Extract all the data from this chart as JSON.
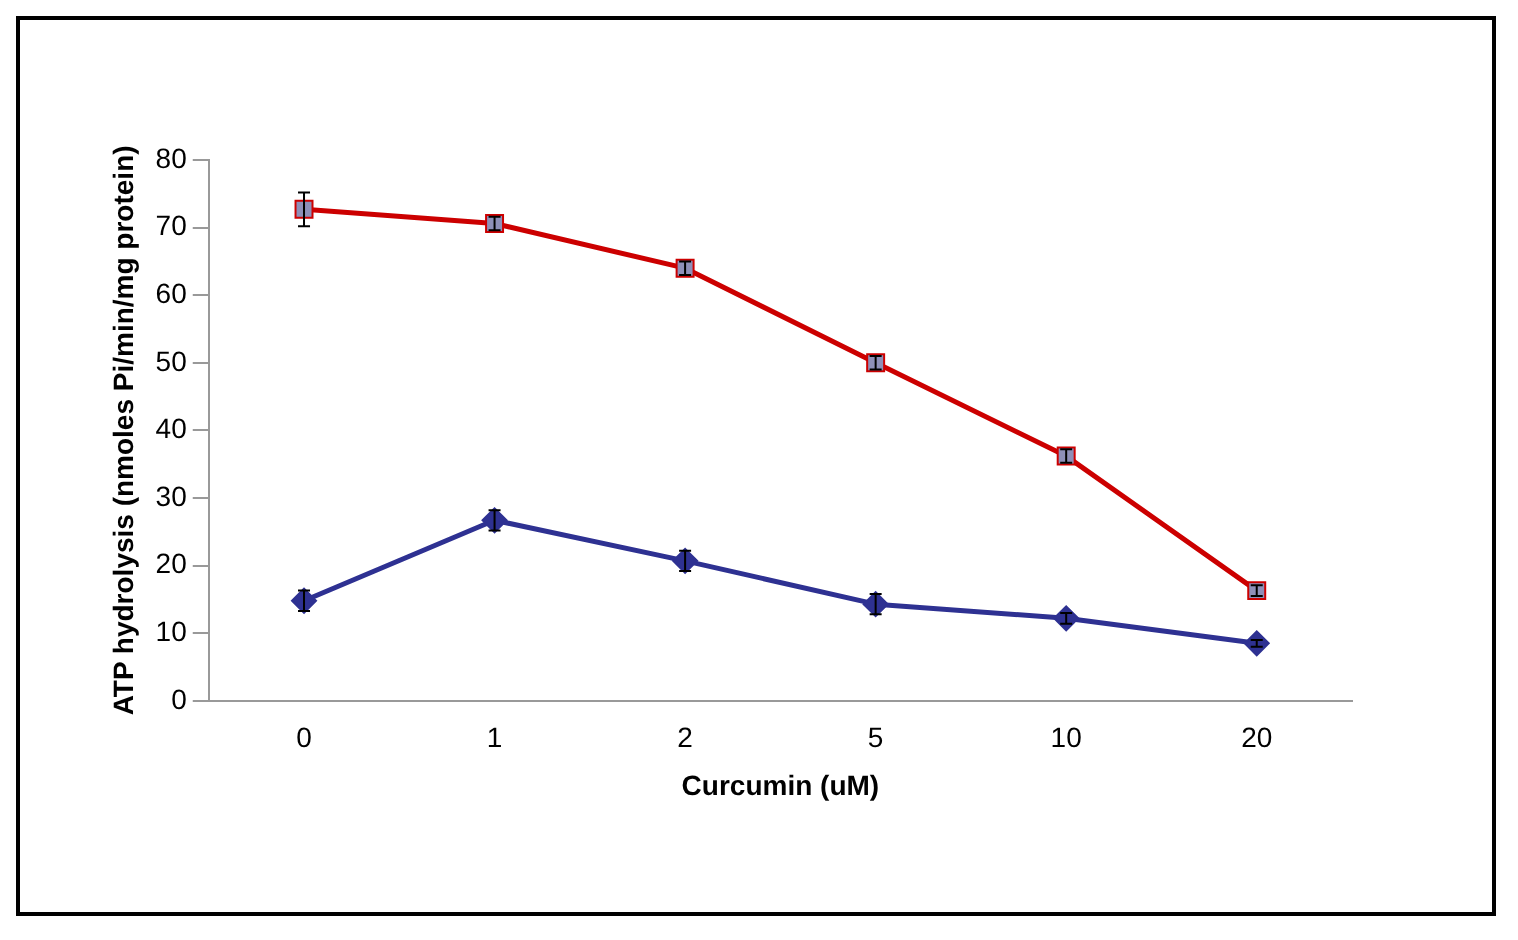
{
  "chart_data": {
    "type": "line",
    "xlabel": "Curcumin (uM)",
    "ylabel": "ATP hydrolysis (nmoles Pi/min/mg protein)",
    "categories": [
      "0",
      "1",
      "2",
      "5",
      "10",
      "20"
    ],
    "ylim": [
      0,
      80
    ],
    "yticks": [
      0,
      10,
      20,
      30,
      40,
      50,
      60,
      70,
      80
    ],
    "grid": false,
    "legend": false,
    "series": [
      {
        "color": "#cc0000",
        "marker": "square",
        "values": [
          72.7,
          70.6,
          64,
          50,
          36.2,
          16.3
        ],
        "errors": [
          2.5,
          1,
          1,
          1,
          1,
          0.8
        ]
      },
      {
        "color": "#2e3192",
        "marker": "diamond",
        "values": [
          14.8,
          26.7,
          20.7,
          14.3,
          12.2,
          8.5
        ],
        "errors": [
          1.5,
          1.5,
          1.5,
          1.5,
          0.8,
          0.5
        ]
      }
    ]
  }
}
